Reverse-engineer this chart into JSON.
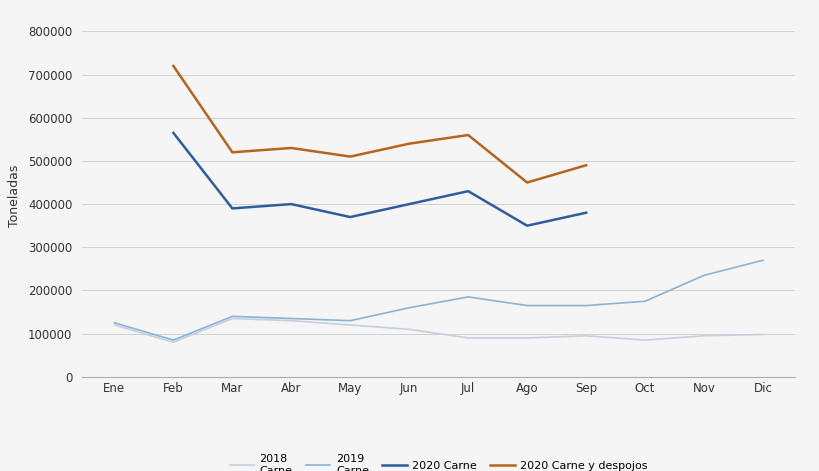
{
  "months": [
    "Ene",
    "Feb",
    "Mar",
    "Abr",
    "May",
    "Jun",
    "Jul",
    "Ago",
    "Sep",
    "Oct",
    "Nov",
    "Dic"
  ],
  "series_2018": [
    120000,
    80000,
    135000,
    130000,
    120000,
    110000,
    90000,
    90000,
    95000,
    85000,
    95000,
    98000
  ],
  "series_2019": [
    125000,
    85000,
    140000,
    135000,
    130000,
    160000,
    185000,
    165000,
    165000,
    175000,
    235000,
    270000
  ],
  "series_2020_carne": [
    null,
    565000,
    390000,
    400000,
    370000,
    400000,
    430000,
    350000,
    380000,
    null,
    null,
    null
  ],
  "series_2020_despojos": [
    null,
    720000,
    520000,
    530000,
    510000,
    540000,
    560000,
    450000,
    490000,
    null,
    null,
    null
  ],
  "color_2018": "#c5cfe0",
  "color_2019": "#8ab4d4",
  "color_2020_carne": "#2e5d9e",
  "color_2020_despojos": "#b5651d",
  "ylabel": "Toneladas",
  "ylim": [
    0,
    840000
  ],
  "yticks": [
    0,
    100000,
    200000,
    300000,
    400000,
    500000,
    600000,
    700000,
    800000
  ],
  "background_color": "#f5f5f5",
  "grid_color": "#cccccc",
  "legend_labels": [
    "2018\nCarne",
    "2019\nCarne",
    "2020 Carne",
    "2020 Carne y despojos"
  ],
  "linewidth_thin": 1.2,
  "linewidth_thick": 1.8,
  "figsize": [
    8.2,
    4.71
  ],
  "dpi": 100
}
